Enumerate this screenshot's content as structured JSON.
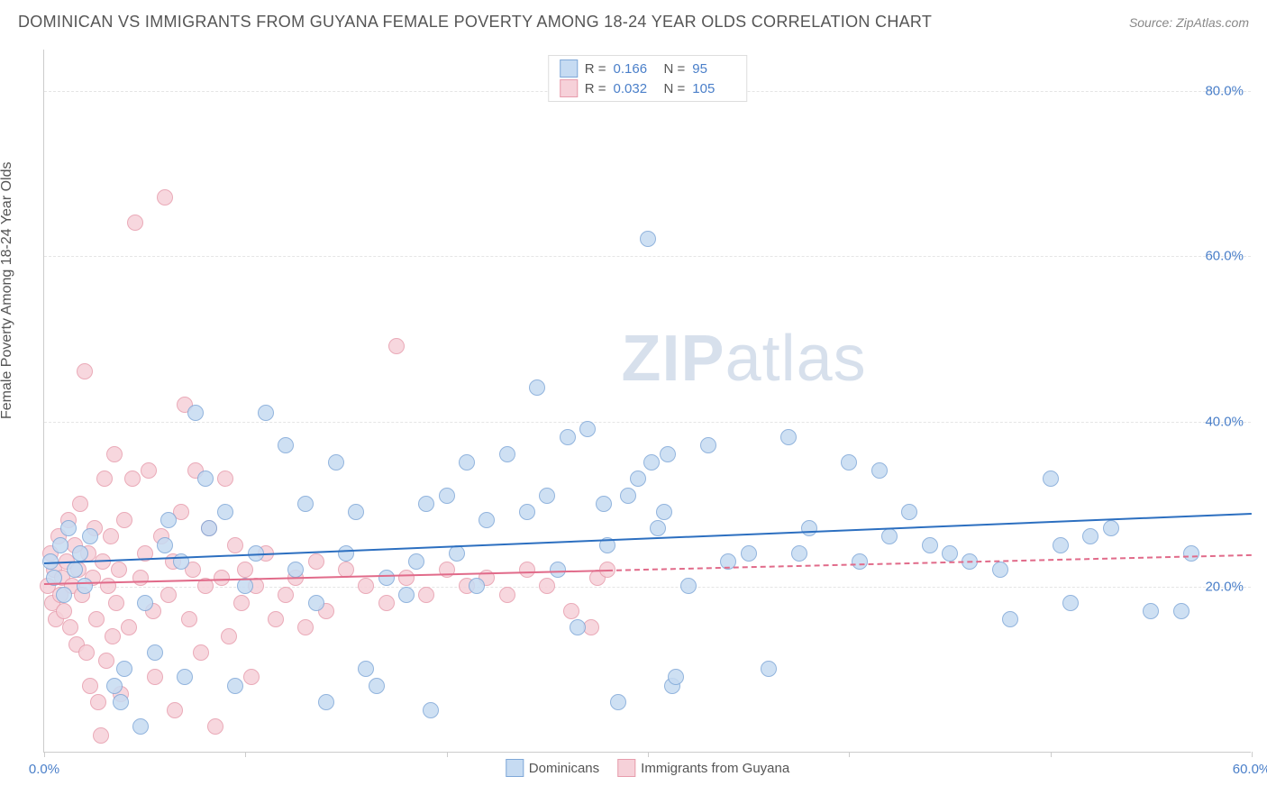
{
  "header": {
    "title": "DOMINICAN VS IMMIGRANTS FROM GUYANA FEMALE POVERTY AMONG 18-24 YEAR OLDS CORRELATION CHART",
    "source": "Source: ZipAtlas.com"
  },
  "watermark": {
    "part1": "ZIP",
    "part2": "atlas"
  },
  "chart": {
    "type": "scatter",
    "ylabel": "Female Poverty Among 18-24 Year Olds",
    "xlim": [
      0,
      60
    ],
    "ylim": [
      0,
      85
    ],
    "xtick_step": 10,
    "yticks": [
      20,
      40,
      60,
      80
    ],
    "xtick_labels": [
      "0.0%",
      "",
      "",
      "",
      "",
      "",
      "60.0%"
    ],
    "ytick_labels": [
      "20.0%",
      "40.0%",
      "60.0%",
      "80.0%"
    ],
    "background_color": "#ffffff",
    "grid_color": "#e5e5e5",
    "axis_color": "#cccccc",
    "tick_label_color": "#4a7fc9",
    "marker_radius": 9,
    "marker_border_width": 1.2,
    "series": [
      {
        "name": "Dominicans",
        "fill": "#c6dbf2",
        "stroke": "#7fa8d8",
        "line_color": "#2c6fc0",
        "r": 0.166,
        "n": 95,
        "trend": {
          "x0": 0,
          "y0": 23,
          "x1": 60,
          "y1": 29,
          "dash_from_x": null
        },
        "points": [
          [
            0.3,
            23
          ],
          [
            0.5,
            21
          ],
          [
            0.8,
            25
          ],
          [
            1.0,
            19
          ],
          [
            1.2,
            27
          ],
          [
            1.5,
            22
          ],
          [
            1.8,
            24
          ],
          [
            2.0,
            20
          ],
          [
            2.3,
            26
          ],
          [
            3.5,
            8
          ],
          [
            3.8,
            6
          ],
          [
            4.0,
            10
          ],
          [
            4.8,
            3
          ],
          [
            5.0,
            18
          ],
          [
            5.5,
            12
          ],
          [
            6.0,
            25
          ],
          [
            6.2,
            28
          ],
          [
            6.8,
            23
          ],
          [
            7.0,
            9
          ],
          [
            7.5,
            41
          ],
          [
            8.0,
            33
          ],
          [
            8.2,
            27
          ],
          [
            9.0,
            29
          ],
          [
            9.5,
            8
          ],
          [
            10.0,
            20
          ],
          [
            10.5,
            24
          ],
          [
            11.0,
            41
          ],
          [
            12.0,
            37
          ],
          [
            12.5,
            22
          ],
          [
            13.0,
            30
          ],
          [
            13.5,
            18
          ],
          [
            14.0,
            6
          ],
          [
            14.5,
            35
          ],
          [
            15.0,
            24
          ],
          [
            15.5,
            29
          ],
          [
            16.0,
            10
          ],
          [
            16.5,
            8
          ],
          [
            17.0,
            21
          ],
          [
            18.0,
            19
          ],
          [
            18.5,
            23
          ],
          [
            19.0,
            30
          ],
          [
            19.2,
            5
          ],
          [
            20.0,
            31
          ],
          [
            20.5,
            24
          ],
          [
            21.0,
            35
          ],
          [
            21.5,
            20
          ],
          [
            22.0,
            28
          ],
          [
            23.0,
            36
          ],
          [
            24.0,
            29
          ],
          [
            24.5,
            44
          ],
          [
            25.0,
            31
          ],
          [
            25.5,
            22
          ],
          [
            26.0,
            38
          ],
          [
            26.5,
            15
          ],
          [
            27.0,
            39
          ],
          [
            27.8,
            30
          ],
          [
            28.0,
            25
          ],
          [
            28.5,
            6
          ],
          [
            29.0,
            31
          ],
          [
            29.5,
            33
          ],
          [
            30.0,
            62
          ],
          [
            30.2,
            35
          ],
          [
            30.5,
            27
          ],
          [
            30.8,
            29
          ],
          [
            31.0,
            36
          ],
          [
            31.2,
            8
          ],
          [
            31.4,
            9
          ],
          [
            32.0,
            20
          ],
          [
            33.0,
            37
          ],
          [
            34.0,
            23
          ],
          [
            35.0,
            24
          ],
          [
            36.0,
            10
          ],
          [
            37.0,
            38
          ],
          [
            37.5,
            24
          ],
          [
            38.0,
            27
          ],
          [
            40.0,
            35
          ],
          [
            40.5,
            23
          ],
          [
            41.5,
            34
          ],
          [
            42.0,
            26
          ],
          [
            43.0,
            29
          ],
          [
            44.0,
            25
          ],
          [
            45.0,
            24
          ],
          [
            46.0,
            23
          ],
          [
            47.5,
            22
          ],
          [
            48.0,
            16
          ],
          [
            50.0,
            33
          ],
          [
            50.5,
            25
          ],
          [
            51.0,
            18
          ],
          [
            52.0,
            26
          ],
          [
            53.0,
            27
          ],
          [
            55.0,
            17
          ],
          [
            56.5,
            17
          ],
          [
            57.0,
            24
          ]
        ]
      },
      {
        "name": "Immigrants from Guyana",
        "fill": "#f6d1d9",
        "stroke": "#e79cac",
        "line_color": "#e16b8a",
        "r": 0.032,
        "n": 105,
        "trend": {
          "x0": 0,
          "y0": 20.5,
          "x1": 60,
          "y1": 24,
          "dash_from_x": 28
        },
        "points": [
          [
            0.2,
            20
          ],
          [
            0.3,
            24
          ],
          [
            0.4,
            18
          ],
          [
            0.5,
            22
          ],
          [
            0.6,
            16
          ],
          [
            0.7,
            26
          ],
          [
            0.8,
            19
          ],
          [
            0.9,
            21
          ],
          [
            1.0,
            17
          ],
          [
            1.1,
            23
          ],
          [
            1.2,
            28
          ],
          [
            1.3,
            15
          ],
          [
            1.4,
            20
          ],
          [
            1.5,
            25
          ],
          [
            1.6,
            13
          ],
          [
            1.7,
            22
          ],
          [
            1.8,
            30
          ],
          [
            1.9,
            19
          ],
          [
            2.0,
            46
          ],
          [
            2.1,
            12
          ],
          [
            2.2,
            24
          ],
          [
            2.3,
            8
          ],
          [
            2.4,
            21
          ],
          [
            2.5,
            27
          ],
          [
            2.6,
            16
          ],
          [
            2.7,
            6
          ],
          [
            2.8,
            2
          ],
          [
            2.9,
            23
          ],
          [
            3.0,
            33
          ],
          [
            3.1,
            11
          ],
          [
            3.2,
            20
          ],
          [
            3.3,
            26
          ],
          [
            3.4,
            14
          ],
          [
            3.5,
            36
          ],
          [
            3.6,
            18
          ],
          [
            3.7,
            22
          ],
          [
            3.8,
            7
          ],
          [
            4.0,
            28
          ],
          [
            4.2,
            15
          ],
          [
            4.4,
            33
          ],
          [
            4.5,
            64
          ],
          [
            4.8,
            21
          ],
          [
            5.0,
            24
          ],
          [
            5.2,
            34
          ],
          [
            5.4,
            17
          ],
          [
            5.5,
            9
          ],
          [
            5.8,
            26
          ],
          [
            6.0,
            67
          ],
          [
            6.2,
            19
          ],
          [
            6.4,
            23
          ],
          [
            6.5,
            5
          ],
          [
            6.8,
            29
          ],
          [
            7.0,
            42
          ],
          [
            7.2,
            16
          ],
          [
            7.4,
            22
          ],
          [
            7.5,
            34
          ],
          [
            7.8,
            12
          ],
          [
            8.0,
            20
          ],
          [
            8.2,
            27
          ],
          [
            8.5,
            3
          ],
          [
            8.8,
            21
          ],
          [
            9.0,
            33
          ],
          [
            9.2,
            14
          ],
          [
            9.5,
            25
          ],
          [
            9.8,
            18
          ],
          [
            10.0,
            22
          ],
          [
            10.3,
            9
          ],
          [
            10.5,
            20
          ],
          [
            11.0,
            24
          ],
          [
            11.5,
            16
          ],
          [
            12.0,
            19
          ],
          [
            12.5,
            21
          ],
          [
            13.0,
            15
          ],
          [
            13.5,
            23
          ],
          [
            14.0,
            17
          ],
          [
            15.0,
            22
          ],
          [
            16.0,
            20
          ],
          [
            17.0,
            18
          ],
          [
            17.5,
            49
          ],
          [
            18.0,
            21
          ],
          [
            19.0,
            19
          ],
          [
            20.0,
            22
          ],
          [
            21.0,
            20
          ],
          [
            22.0,
            21
          ],
          [
            23.0,
            19
          ],
          [
            24.0,
            22
          ],
          [
            25.0,
            20
          ],
          [
            26.2,
            17
          ],
          [
            27.2,
            15
          ],
          [
            27.5,
            21
          ],
          [
            28.0,
            22
          ]
        ]
      }
    ],
    "legend_top": {
      "r_label": "R =",
      "n_label": "N ="
    },
    "legend_bottom_labels": [
      "Dominicans",
      "Immigrants from Guyana"
    ]
  }
}
